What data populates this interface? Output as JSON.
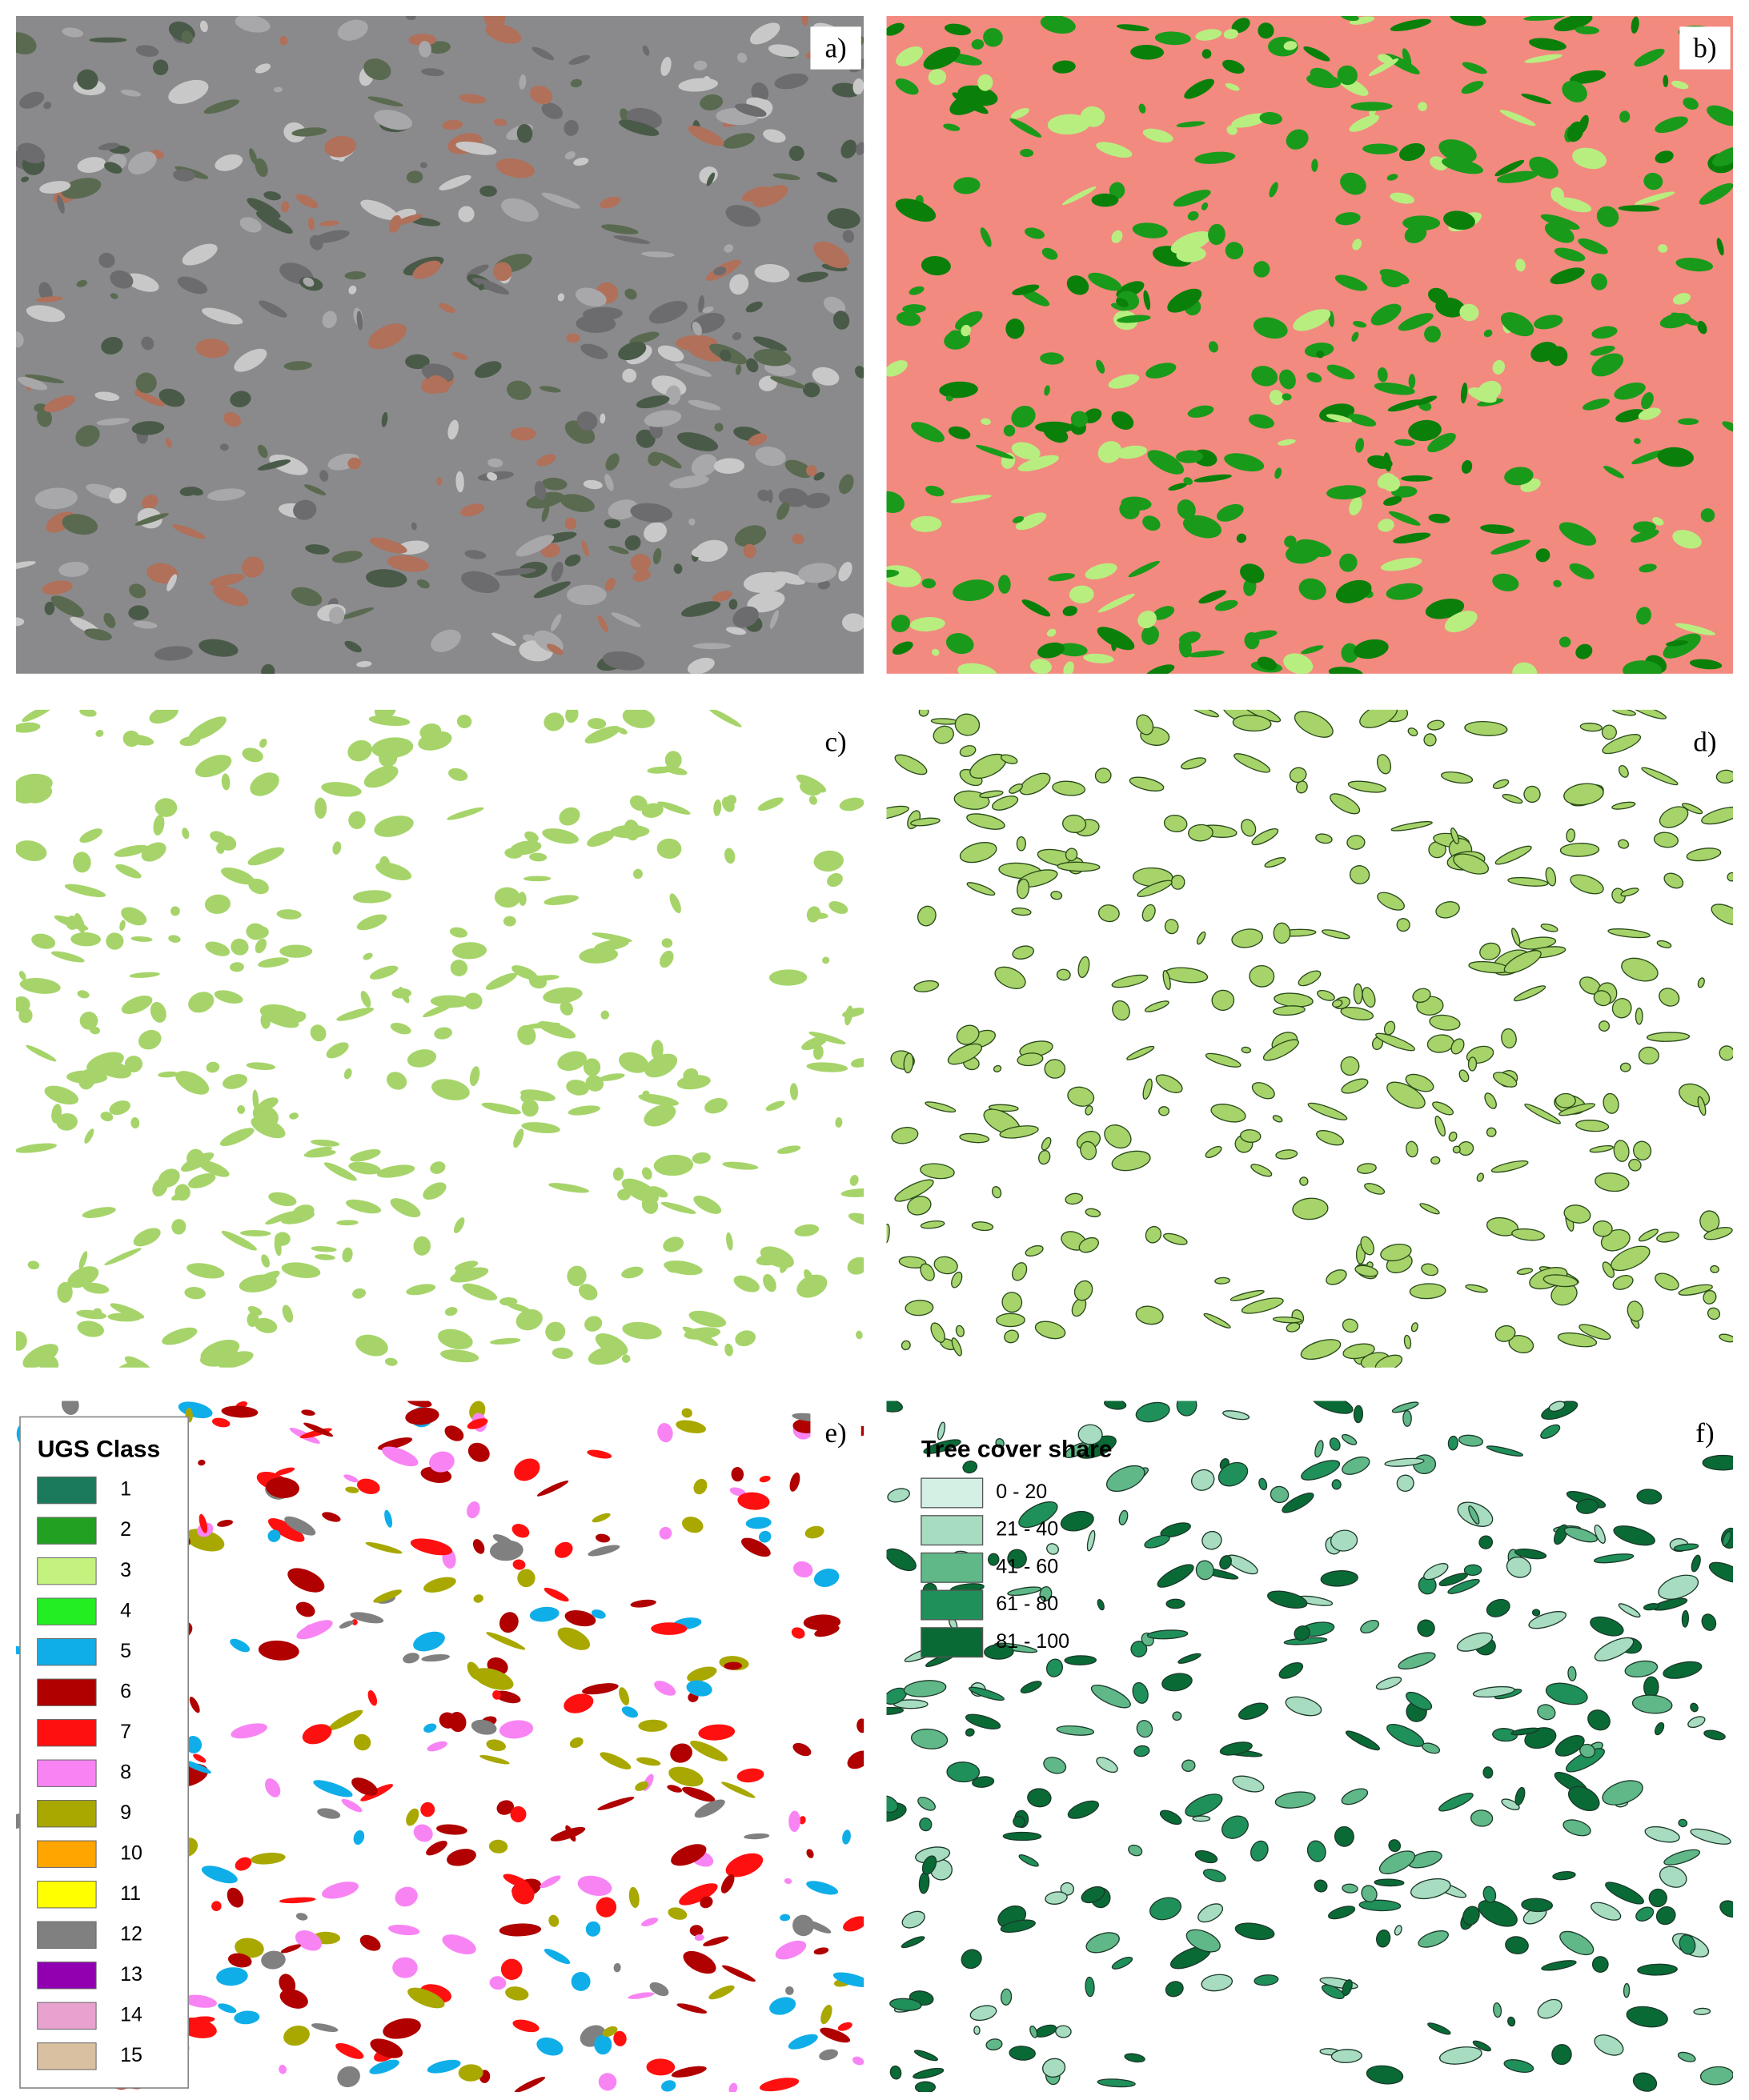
{
  "panels": [
    {
      "label": "a)"
    },
    {
      "label": "b)"
    },
    {
      "label": "c)"
    },
    {
      "label": "d)"
    },
    {
      "label": "e)"
    },
    {
      "label": "f)"
    }
  ],
  "legend_ugs": {
    "title": "UGS Class",
    "items": [
      {
        "label": "1",
        "color": "#1b7a5c"
      },
      {
        "label": "2",
        "color": "#22a022"
      },
      {
        "label": "3",
        "color": "#c4f27e"
      },
      {
        "label": "4",
        "color": "#22ee22"
      },
      {
        "label": "5",
        "color": "#10aee8"
      },
      {
        "label": "6",
        "color": "#b00000"
      },
      {
        "label": "7",
        "color": "#ff1010"
      },
      {
        "label": "8",
        "color": "#f884f4"
      },
      {
        "label": "9",
        "color": "#a8a800"
      },
      {
        "label": "10",
        "color": "#ffa500"
      },
      {
        "label": "11",
        "color": "#ffff00"
      },
      {
        "label": "12",
        "color": "#808080"
      },
      {
        "label": "13",
        "color": "#9000b0"
      },
      {
        "label": "14",
        "color": "#e8a2d0"
      },
      {
        "label": "15",
        "color": "#d8c0a0"
      }
    ]
  },
  "legend_tree": {
    "title": "Tree cover share",
    "items": [
      {
        "label": "0 - 20",
        "color": "#d4f0e4"
      },
      {
        "label": "21 - 40",
        "color": "#a8dcc0"
      },
      {
        "label": "41 - 60",
        "color": "#60b888"
      },
      {
        "label": "61 - 80",
        "color": "#20905a"
      },
      {
        "label": "81 - 100",
        "color": "#0a6a36"
      }
    ]
  }
}
